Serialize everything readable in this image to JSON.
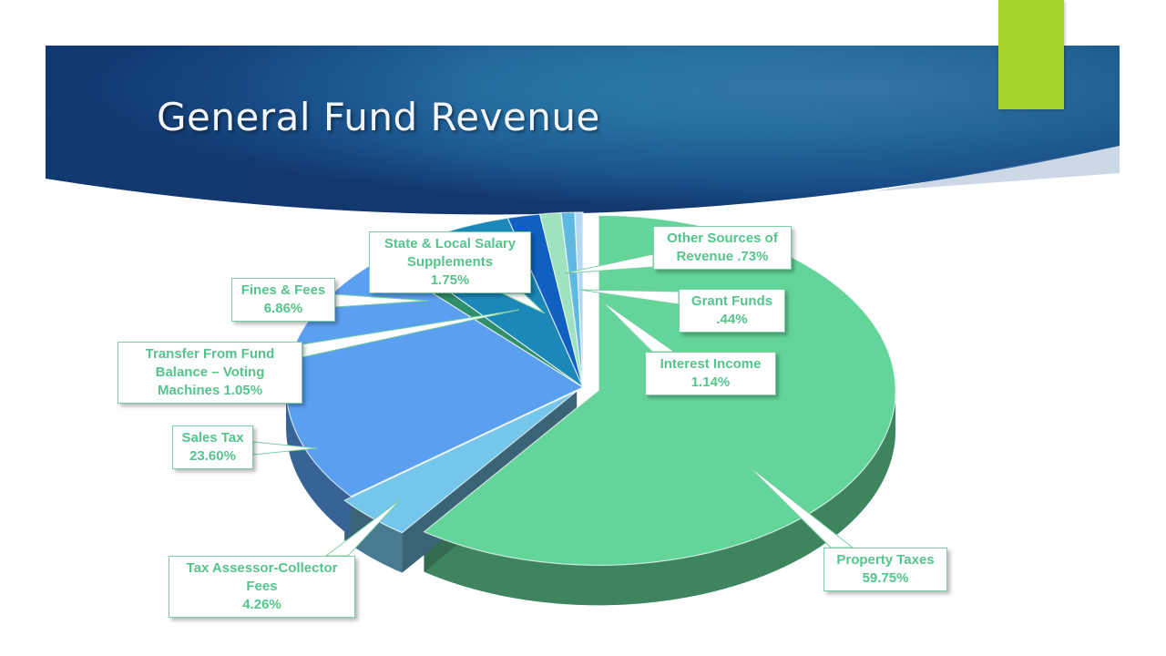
{
  "slide": {
    "title": "General Fund Revenue"
  },
  "colors": {
    "banner": "#1f5d96",
    "accent": "#a8d42b",
    "label_text": "#55c48c",
    "label_border": "#7ccfa3"
  },
  "chart_data": {
    "type": "pie",
    "style": "3d-exploded",
    "title": "",
    "slices": [
      {
        "name": "Property Taxes",
        "value": 59.75,
        "color": "#63d59a"
      },
      {
        "name": "Tax Assessor-Collector Fees",
        "value": 4.26,
        "color": "#74c6ea"
      },
      {
        "name": "Sales Tax",
        "value": 23.6,
        "color": "#5b9ff0"
      },
      {
        "name": "Transfer From Fund Balance – Voting Machines",
        "value": 1.05,
        "color": "#2f8f6a"
      },
      {
        "name": "Fines & Fees",
        "value": 6.86,
        "color": "#1b88b8"
      },
      {
        "name": "State & Local Salary Supplements",
        "value": 1.75,
        "color": "#1060c0"
      },
      {
        "name": "Interest Income",
        "value": 1.14,
        "color": "#9ee2c0"
      },
      {
        "name": "Other Sources of Revenue",
        "value": 0.73,
        "color": "#5fb8e0"
      },
      {
        "name": "Grant Funds",
        "value": 0.44,
        "color": "#b4d8f2"
      }
    ],
    "labels": {
      "property": [
        "Property Taxes",
        "59.75%"
      ],
      "tax": [
        "Tax Assessor-Collector",
        "Fees",
        "4.26%"
      ],
      "sales": [
        "Sales Tax",
        "23.60%"
      ],
      "transfer": [
        "Transfer From Fund",
        "Balance – Voting",
        "Machines 1.05%"
      ],
      "fines": [
        "Fines & Fees",
        "6.86%"
      ],
      "state": [
        "State & Local Salary",
        "Supplements",
        "1.75%"
      ],
      "other": [
        "Other Sources of",
        "Revenue .73%"
      ],
      "grant": [
        "Grant Funds",
        ".44%"
      ],
      "interest": [
        "Interest Income",
        "1.14%"
      ]
    }
  }
}
